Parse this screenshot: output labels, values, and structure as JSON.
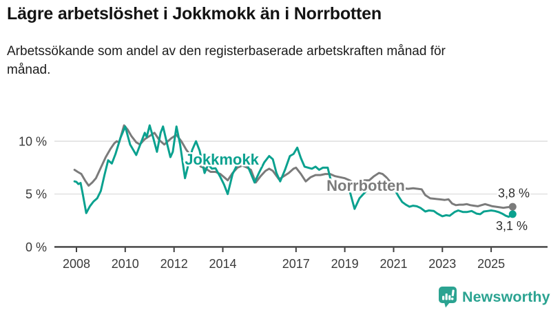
{
  "chart_data": {
    "type": "line",
    "title": "Lägre arbetslöshet i Jokkmokk än i Norrbotten",
    "subtitle": "Arbetssökande som andel av den registerbaserade arbetskraften månad för månad.",
    "unit": "%",
    "grid": "horizontal",
    "legend_position": "inline-labels",
    "xlim": [
      2007.9,
      2026.3
    ],
    "ylim": [
      0,
      12
    ],
    "y_axis": {
      "ticks": [
        {
          "value": 10,
          "label": "10 %"
        },
        {
          "value": 5,
          "label": "5 %"
        },
        {
          "value": 0,
          "label": "0 %"
        }
      ]
    },
    "x_axis": {
      "ticks": [
        {
          "value": 2008,
          "label": "2008"
        },
        {
          "value": 2010,
          "label": "2010"
        },
        {
          "value": 2012,
          "label": "2012"
        },
        {
          "value": 2014,
          "label": "2014"
        },
        {
          "value": 2017,
          "label": "2017"
        },
        {
          "value": 2019,
          "label": "2019"
        },
        {
          "value": 2021,
          "label": "2021"
        },
        {
          "value": 2023,
          "label": "2023"
        },
        {
          "value": 2025,
          "label": "2025"
        }
      ]
    },
    "series": [
      {
        "id": "norrbotten",
        "name": "Norrbotten",
        "color": "#7b7b7b",
        "end_label": "3,8 %",
        "points": [
          [
            2007.92,
            7.3
          ],
          [
            2008.05,
            7.1
          ],
          [
            2008.2,
            6.9
          ],
          [
            2008.35,
            6.3
          ],
          [
            2008.5,
            5.8
          ],
          [
            2008.65,
            6.1
          ],
          [
            2008.8,
            6.5
          ],
          [
            2009.0,
            7.5
          ],
          [
            2009.2,
            8.5
          ],
          [
            2009.4,
            9.3
          ],
          [
            2009.55,
            9.8
          ],
          [
            2009.65,
            10.0
          ],
          [
            2009.75,
            9.9
          ],
          [
            2009.95,
            11.5
          ],
          [
            2010.1,
            11.1
          ],
          [
            2010.25,
            10.5
          ],
          [
            2010.45,
            9.9
          ],
          [
            2010.6,
            9.7
          ],
          [
            2010.8,
            10.2
          ],
          [
            2011.0,
            10.5
          ],
          [
            2011.2,
            10.8
          ],
          [
            2011.4,
            10.1
          ],
          [
            2011.6,
            9.7
          ],
          [
            2011.75,
            10.0
          ],
          [
            2011.9,
            10.3
          ],
          [
            2012.1,
            10.6
          ],
          [
            2012.3,
            10.0
          ],
          [
            2012.5,
            9.2
          ],
          [
            2012.7,
            8.6
          ],
          [
            2012.9,
            8.1
          ],
          [
            2013.1,
            7.6
          ],
          [
            2013.3,
            7.4
          ],
          [
            2013.5,
            7.1
          ],
          [
            2013.7,
            7.1
          ],
          [
            2013.9,
            6.9
          ],
          [
            2014.1,
            6.5
          ],
          [
            2014.2,
            6.3
          ],
          [
            2014.4,
            7.0
          ],
          [
            2014.6,
            7.5
          ],
          [
            2014.8,
            7.7
          ],
          [
            2015.0,
            7.5
          ],
          [
            2015.15,
            7.3
          ],
          [
            2015.35,
            6.1
          ],
          [
            2015.55,
            6.7
          ],
          [
            2015.75,
            7.2
          ],
          [
            2015.9,
            7.4
          ],
          [
            2016.05,
            7.2
          ],
          [
            2016.3,
            6.4
          ],
          [
            2016.5,
            6.7
          ],
          [
            2016.7,
            7.0
          ],
          [
            2016.9,
            7.4
          ],
          [
            2017.0,
            7.5
          ],
          [
            2017.2,
            6.9
          ],
          [
            2017.4,
            6.2
          ],
          [
            2017.6,
            6.6
          ],
          [
            2017.8,
            6.8
          ],
          [
            2018.0,
            6.8
          ],
          [
            2018.2,
            6.9
          ],
          [
            2018.4,
            6.9
          ],
          [
            2018.6,
            6.7
          ],
          [
            2018.8,
            6.6
          ],
          [
            2019.0,
            6.5
          ],
          [
            2019.2,
            6.3
          ],
          [
            2019.4,
            6.0
          ],
          [
            2019.6,
            6.2
          ],
          [
            2019.8,
            6.3
          ],
          [
            2020.0,
            6.3
          ],
          [
            2020.2,
            6.7
          ],
          [
            2020.4,
            7.0
          ],
          [
            2020.55,
            6.9
          ],
          [
            2020.7,
            6.6
          ],
          [
            2020.85,
            6.2
          ],
          [
            2021.0,
            5.9
          ],
          [
            2021.2,
            5.6
          ],
          [
            2021.4,
            5.55
          ],
          [
            2021.6,
            5.5
          ],
          [
            2021.8,
            5.55
          ],
          [
            2022.0,
            5.5
          ],
          [
            2022.15,
            5.45
          ],
          [
            2022.3,
            4.9
          ],
          [
            2022.5,
            4.6
          ],
          [
            2022.7,
            4.55
          ],
          [
            2022.9,
            4.5
          ],
          [
            2023.1,
            4.45
          ],
          [
            2023.25,
            4.5
          ],
          [
            2023.4,
            4.1
          ],
          [
            2023.55,
            3.95
          ],
          [
            2023.7,
            4.0
          ],
          [
            2023.85,
            4.0
          ],
          [
            2024.0,
            4.05
          ],
          [
            2024.15,
            3.95
          ],
          [
            2024.3,
            3.9
          ],
          [
            2024.45,
            3.85
          ],
          [
            2024.6,
            3.95
          ],
          [
            2024.75,
            4.05
          ],
          [
            2024.9,
            3.95
          ],
          [
            2025.05,
            3.85
          ],
          [
            2025.2,
            3.8
          ],
          [
            2025.35,
            3.75
          ],
          [
            2025.5,
            3.7
          ],
          [
            2025.65,
            3.75
          ],
          [
            2025.88,
            3.8
          ]
        ]
      },
      {
        "id": "jokkmokk",
        "name": "Jokkmokk",
        "color": "#0aa18f",
        "end_label": "3,1 %",
        "points": [
          [
            2007.92,
            6.2
          ],
          [
            2008.0,
            6.15
          ],
          [
            2008.08,
            5.95
          ],
          [
            2008.17,
            6.05
          ],
          [
            2008.25,
            5.1
          ],
          [
            2008.4,
            3.2
          ],
          [
            2008.55,
            3.85
          ],
          [
            2008.7,
            4.3
          ],
          [
            2008.85,
            4.6
          ],
          [
            2009.0,
            5.3
          ],
          [
            2009.15,
            6.8
          ],
          [
            2009.3,
            8.2
          ],
          [
            2009.45,
            7.9
          ],
          [
            2009.6,
            8.8
          ],
          [
            2009.8,
            10.3
          ],
          [
            2010.0,
            11.4
          ],
          [
            2010.2,
            9.7
          ],
          [
            2010.45,
            8.7
          ],
          [
            2010.65,
            9.9
          ],
          [
            2010.8,
            10.8
          ],
          [
            2010.88,
            10.4
          ],
          [
            2011.0,
            11.5
          ],
          [
            2011.15,
            10.3
          ],
          [
            2011.3,
            9.0
          ],
          [
            2011.45,
            10.8
          ],
          [
            2011.55,
            11.4
          ],
          [
            2011.7,
            9.9
          ],
          [
            2011.85,
            8.5
          ],
          [
            2011.95,
            9.0
          ],
          [
            2012.1,
            11.4
          ],
          [
            2012.25,
            9.7
          ],
          [
            2012.45,
            6.5
          ],
          [
            2012.6,
            7.9
          ],
          [
            2012.75,
            9.2
          ],
          [
            2012.9,
            10.0
          ],
          [
            2013.05,
            9.1
          ],
          [
            2013.25,
            7.0
          ],
          [
            2013.4,
            7.8
          ],
          [
            2013.55,
            7.4
          ],
          [
            2013.7,
            7.45
          ],
          [
            2013.9,
            6.6
          ],
          [
            2014.05,
            5.9
          ],
          [
            2014.2,
            5.0
          ],
          [
            2014.4,
            6.9
          ],
          [
            2014.55,
            7.6
          ],
          [
            2014.75,
            8.0
          ],
          [
            2014.9,
            8.2
          ],
          [
            2015.05,
            7.5
          ],
          [
            2015.3,
            6.1
          ],
          [
            2015.5,
            7.1
          ],
          [
            2015.7,
            8.0
          ],
          [
            2015.9,
            8.6
          ],
          [
            2016.05,
            8.3
          ],
          [
            2016.2,
            7.0
          ],
          [
            2016.35,
            6.2
          ],
          [
            2016.55,
            7.3
          ],
          [
            2016.75,
            8.6
          ],
          [
            2016.9,
            8.8
          ],
          [
            2017.05,
            9.4
          ],
          [
            2017.2,
            8.4
          ],
          [
            2017.35,
            7.6
          ],
          [
            2017.5,
            7.5
          ],
          [
            2017.65,
            7.4
          ],
          [
            2017.8,
            7.6
          ],
          [
            2017.95,
            7.3
          ],
          [
            2018.1,
            7.5
          ],
          [
            2018.3,
            7.5
          ],
          [
            2018.45,
            6.1
          ],
          [
            2018.6,
            5.6
          ],
          [
            2018.75,
            5.9
          ],
          [
            2018.9,
            5.8
          ],
          [
            2019.05,
            5.5
          ],
          [
            2019.2,
            5.3
          ],
          [
            2019.4,
            3.6
          ],
          [
            2019.6,
            4.6
          ],
          [
            2019.8,
            5.1
          ],
          [
            2020.0,
            5.6
          ],
          [
            2020.15,
            5.7
          ],
          [
            2020.35,
            5.9
          ],
          [
            2020.55,
            5.75
          ],
          [
            2020.75,
            5.6
          ],
          [
            2020.9,
            5.6
          ],
          [
            2021.05,
            5.4
          ],
          [
            2021.2,
            4.8
          ],
          [
            2021.35,
            4.25
          ],
          [
            2021.5,
            4.0
          ],
          [
            2021.65,
            3.8
          ],
          [
            2021.8,
            3.9
          ],
          [
            2021.95,
            3.85
          ],
          [
            2022.1,
            3.7
          ],
          [
            2022.3,
            3.35
          ],
          [
            2022.45,
            3.45
          ],
          [
            2022.65,
            3.4
          ],
          [
            2022.8,
            3.15
          ],
          [
            2023.0,
            2.9
          ],
          [
            2023.15,
            3.0
          ],
          [
            2023.3,
            2.95
          ],
          [
            2023.5,
            3.3
          ],
          [
            2023.65,
            3.45
          ],
          [
            2023.85,
            3.3
          ],
          [
            2024.0,
            3.3
          ],
          [
            2024.2,
            3.4
          ],
          [
            2024.4,
            3.15
          ],
          [
            2024.55,
            3.1
          ],
          [
            2024.7,
            3.35
          ],
          [
            2024.85,
            3.4
          ],
          [
            2025.0,
            3.45
          ],
          [
            2025.15,
            3.4
          ],
          [
            2025.3,
            3.3
          ],
          [
            2025.45,
            3.15
          ],
          [
            2025.6,
            2.95
          ],
          [
            2025.72,
            2.85
          ],
          [
            2025.88,
            3.1
          ]
        ]
      }
    ],
    "colors": {
      "axis": "#3f3f3f",
      "grid": "#d8d8d8",
      "text": "#141414"
    }
  },
  "branding": {
    "logo_text": "Newsworthy",
    "logo_color": "#2ba391"
  }
}
